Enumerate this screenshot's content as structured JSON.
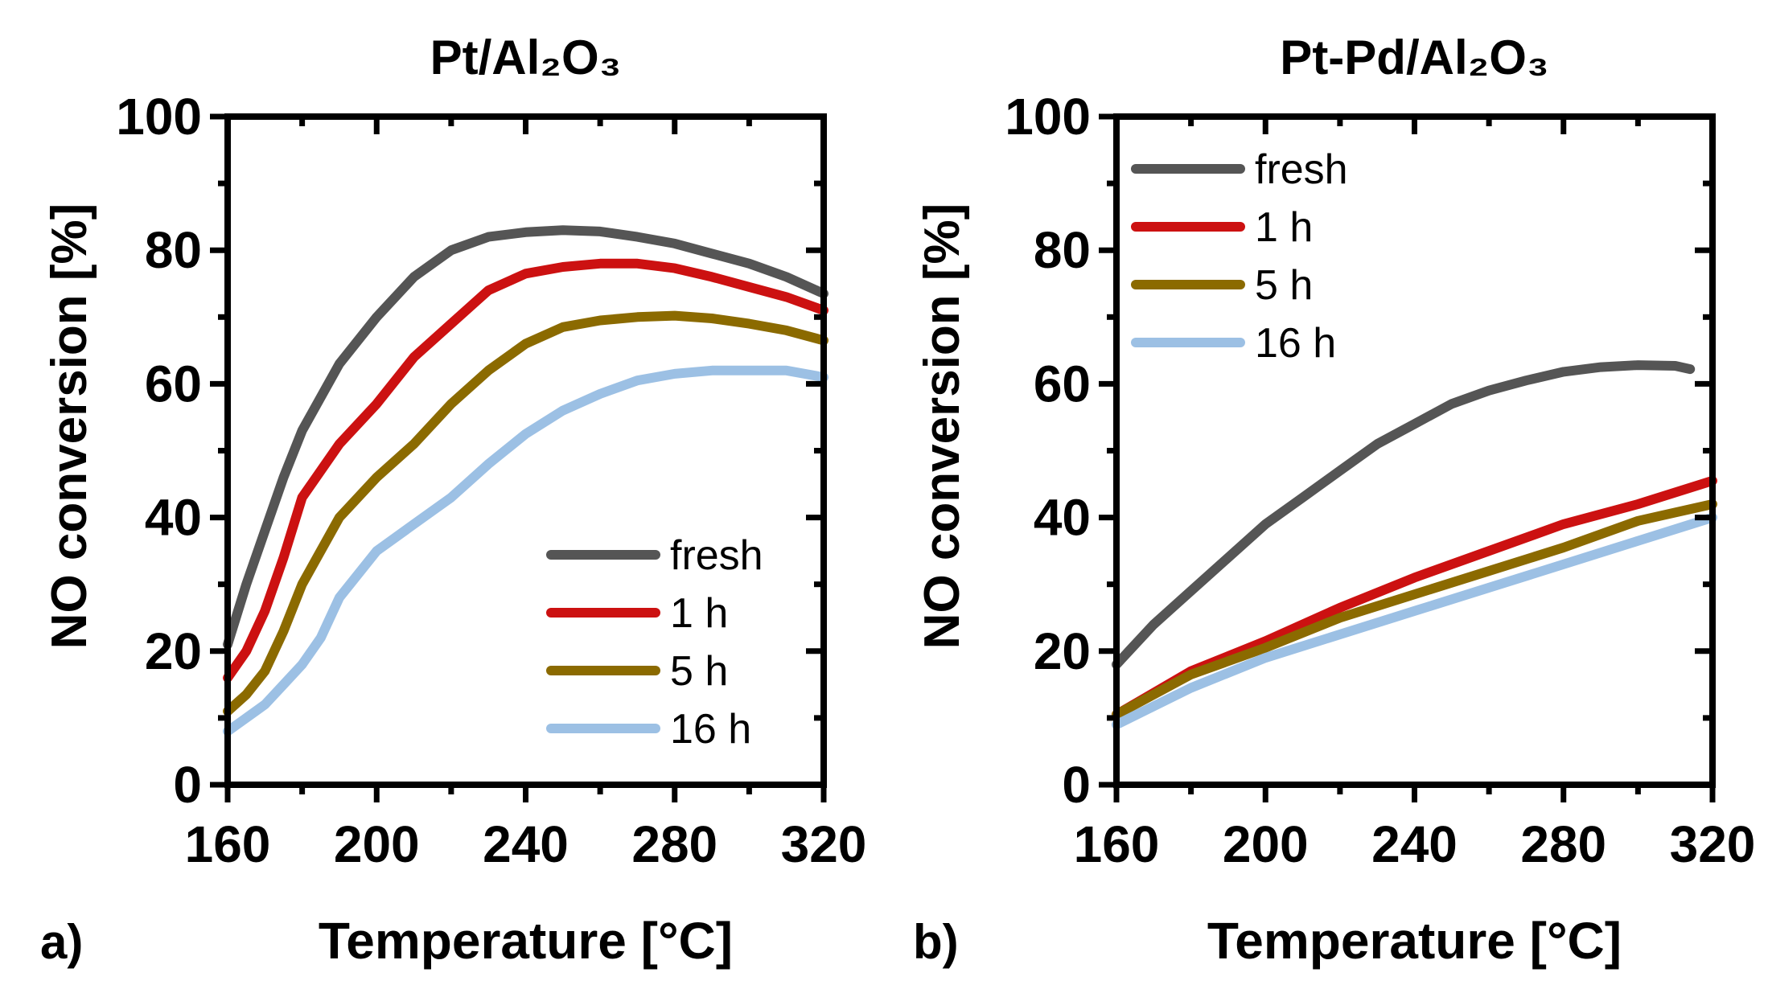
{
  "chart_data": [
    {
      "type": "line",
      "panel_label": "a)",
      "title": "Pt/Al₂O₃",
      "xlabel": "Temperature [°C]",
      "ylabel": "NO conversion [%]",
      "xlim": [
        160,
        320
      ],
      "ylim": [
        0,
        100
      ],
      "xticks": [
        "160",
        "200",
        "240",
        "280",
        "320"
      ],
      "yticks": [
        "0",
        "20",
        "40",
        "60",
        "80",
        "100"
      ],
      "grid": false,
      "legend_position": "bottom-right",
      "series": [
        {
          "name": "fresh",
          "color": "#555555",
          "x": [
            160,
            165,
            170,
            175,
            180,
            190,
            200,
            210,
            220,
            230,
            240,
            250,
            260,
            270,
            280,
            290,
            300,
            310,
            320
          ],
          "y": [
            21,
            30,
            38,
            46,
            53,
            63,
            70,
            76,
            80,
            82,
            82.7,
            83,
            82.8,
            82,
            81,
            79.5,
            78,
            76,
            73.5
          ]
        },
        {
          "name": "1 h",
          "color": "#cc1111",
          "x": [
            160,
            165,
            170,
            175,
            180,
            190,
            200,
            210,
            220,
            230,
            240,
            250,
            260,
            270,
            280,
            290,
            300,
            310,
            320
          ],
          "y": [
            16,
            20,
            26,
            34,
            43,
            51,
            57,
            64,
            69,
            74,
            76.5,
            77.5,
            78,
            78,
            77.3,
            76,
            74.5,
            73,
            71
          ]
        },
        {
          "name": "5 h",
          "color": "#8b6a00",
          "x": [
            160,
            165,
            170,
            175,
            180,
            190,
            200,
            210,
            220,
            230,
            240,
            250,
            260,
            270,
            280,
            290,
            300,
            310,
            320
          ],
          "y": [
            11,
            13.5,
            17,
            23,
            30,
            40,
            46,
            51,
            57,
            62,
            66,
            68.5,
            69.5,
            70,
            70.2,
            69.8,
            69,
            68,
            66.5
          ]
        },
        {
          "name": "16 h",
          "color": "#9cc0e4",
          "x": [
            160,
            165,
            170,
            175,
            180,
            185,
            190,
            200,
            210,
            220,
            230,
            240,
            250,
            260,
            270,
            280,
            290,
            300,
            310,
            320
          ],
          "y": [
            8,
            10,
            12,
            15,
            18,
            22,
            28,
            35,
            39,
            43,
            48,
            52.5,
            56,
            58.5,
            60.5,
            61.5,
            62,
            62,
            62,
            61
          ]
        }
      ]
    },
    {
      "type": "line",
      "panel_label": "b)",
      "title": "Pt-Pd/Al₂O₃",
      "xlabel": "Temperature [°C]",
      "ylabel": "NO conversion [%]",
      "xlim": [
        160,
        320
      ],
      "ylim": [
        0,
        100
      ],
      "xticks": [
        "160",
        "200",
        "240",
        "280",
        "320"
      ],
      "yticks": [
        "0",
        "20",
        "40",
        "60",
        "80",
        "100"
      ],
      "grid": false,
      "legend_position": "top-left",
      "series": [
        {
          "name": "fresh",
          "color": "#555555",
          "x": [
            160,
            170,
            180,
            190,
            200,
            210,
            220,
            230,
            240,
            250,
            260,
            270,
            280,
            290,
            300,
            310,
            314
          ],
          "y": [
            18,
            24,
            29,
            34,
            39,
            43,
            47,
            51,
            54,
            57,
            59,
            60.5,
            61.8,
            62.5,
            62.8,
            62.7,
            62.2
          ]
        },
        {
          "name": "1 h",
          "color": "#cc1111",
          "x": [
            160,
            180,
            200,
            220,
            240,
            260,
            280,
            300,
            320
          ],
          "y": [
            10.5,
            17,
            21.5,
            26.5,
            31,
            35,
            39,
            42,
            45.5
          ]
        },
        {
          "name": "5 h",
          "color": "#8b6a00",
          "x": [
            160,
            180,
            200,
            220,
            240,
            260,
            280,
            300,
            320
          ],
          "y": [
            10.5,
            16.5,
            20.5,
            25,
            28.5,
            32,
            35.5,
            39.5,
            42
          ]
        },
        {
          "name": "16 h",
          "color": "#9cc0e4",
          "x": [
            160,
            180,
            200,
            220,
            240,
            260,
            280,
            300,
            320
          ],
          "y": [
            9,
            14.5,
            19,
            22.5,
            26,
            29.5,
            33,
            36.5,
            40
          ]
        }
      ]
    }
  ]
}
